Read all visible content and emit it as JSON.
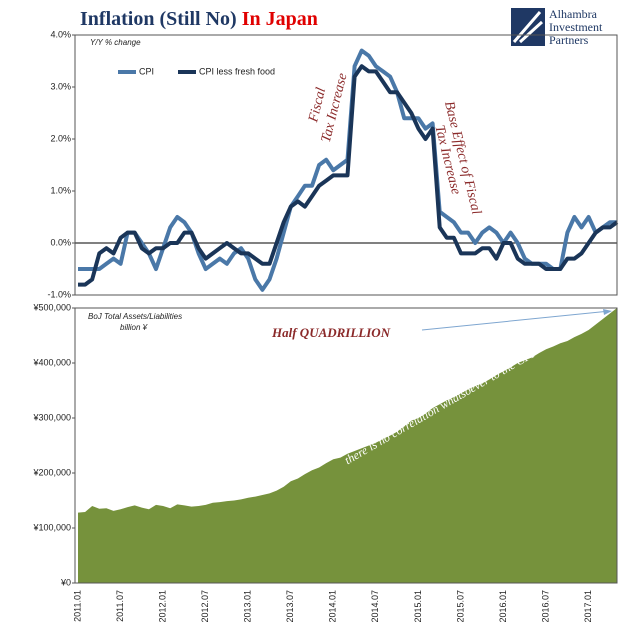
{
  "header": {
    "title": "Inflation (Still No)",
    "title_highlight": "In Japan",
    "logo": [
      "Alhambra",
      "Investment",
      "Partners"
    ]
  },
  "chart_data": [
    {
      "type": "line",
      "axis_label": "Y/Y % change",
      "ylim": [
        -1,
        4
      ],
      "yticks": [
        {
          "value": -1,
          "label": "-1.0%"
        },
        {
          "value": 0,
          "label": "0.0%"
        },
        {
          "value": 1,
          "label": "1.0%"
        },
        {
          "value": 2,
          "label": "2.0%"
        },
        {
          "value": 3,
          "label": "3.0%"
        },
        {
          "value": 4,
          "label": "4.0%"
        }
      ],
      "legend": "upper left",
      "annotations": [
        "Fiscal",
        "Tax Increase",
        "Base Effect of Fiscal",
        "Tax Increase"
      ],
      "series": [
        {
          "name": "CPI",
          "color": "#4a78a8",
          "values": [
            -0.5,
            -0.5,
            -0.5,
            -0.5,
            -0.4,
            -0.3,
            -0.4,
            0.2,
            0.2,
            0.0,
            -0.2,
            -0.5,
            -0.1,
            0.3,
            0.5,
            0.4,
            0.2,
            -0.2,
            -0.5,
            -0.4,
            -0.3,
            -0.4,
            -0.2,
            -0.1,
            -0.3,
            -0.7,
            -0.9,
            -0.7,
            -0.3,
            0.2,
            0.7,
            0.9,
            1.1,
            1.1,
            1.5,
            1.6,
            1.4,
            1.5,
            1.6,
            3.4,
            3.7,
            3.6,
            3.4,
            3.3,
            3.2,
            2.9,
            2.4,
            2.4,
            2.4,
            2.2,
            2.3,
            0.6,
            0.5,
            0.4,
            0.2,
            0.2,
            0.0,
            0.2,
            0.3,
            0.2,
            0.0,
            0.2,
            0.0,
            -0.3,
            -0.4,
            -0.4,
            -0.4,
            -0.5,
            -0.5,
            0.2,
            0.5,
            0.3,
            0.5,
            0.2,
            0.3,
            0.4,
            0.4
          ]
        },
        {
          "name": "CPI less fresh food",
          "color": "#1a3558",
          "values": [
            -0.8,
            -0.8,
            -0.7,
            -0.2,
            -0.1,
            -0.2,
            0.1,
            0.2,
            0.2,
            -0.1,
            -0.2,
            -0.1,
            -0.1,
            0.0,
            0.0,
            0.2,
            0.2,
            -0.1,
            -0.3,
            -0.2,
            -0.1,
            0.0,
            -0.1,
            -0.2,
            -0.2,
            -0.3,
            -0.4,
            -0.4,
            0.0,
            0.4,
            0.7,
            0.8,
            0.7,
            0.9,
            1.1,
            1.2,
            1.3,
            1.3,
            1.3,
            3.2,
            3.4,
            3.3,
            3.3,
            3.1,
            2.9,
            2.9,
            2.7,
            2.5,
            2.2,
            2.0,
            2.2,
            0.3,
            0.1,
            0.1,
            -0.2,
            -0.2,
            -0.2,
            -0.1,
            -0.1,
            -0.3,
            0.0,
            0.0,
            -0.3,
            -0.4,
            -0.4,
            -0.4,
            -0.5,
            -0.5,
            -0.5,
            -0.3,
            -0.3,
            -0.2,
            0.0,
            0.2,
            0.3,
            0.3,
            0.4
          ]
        }
      ]
    },
    {
      "type": "area",
      "axis_label": [
        "BoJ Total Assets/Liabilities",
        "billion ¥"
      ],
      "color": "#76923c",
      "categories": [
        "2011.01",
        null,
        null,
        null,
        null,
        null,
        "2011.07",
        null,
        null,
        null,
        null,
        null,
        "2012.01",
        null,
        null,
        null,
        null,
        null,
        "2012.07",
        null,
        null,
        null,
        null,
        null,
        "2013.01",
        null,
        null,
        null,
        null,
        null,
        "2013.07",
        null,
        null,
        null,
        null,
        null,
        "2014.01",
        null,
        null,
        null,
        null,
        null,
        "2014.07",
        null,
        null,
        null,
        null,
        null,
        "2015.01",
        null,
        null,
        null,
        null,
        null,
        "2015.07",
        null,
        null,
        null,
        null,
        null,
        "2016.01",
        null,
        null,
        null,
        null,
        null,
        "2016.07",
        null,
        null,
        null,
        null,
        null,
        "2017.01",
        null,
        null,
        null,
        null
      ],
      "values": [
        128000,
        129000,
        140000,
        135000,
        136000,
        131000,
        134000,
        138000,
        141000,
        137000,
        134000,
        142000,
        140000,
        136000,
        143000,
        141000,
        139000,
        140000,
        142000,
        146000,
        147000,
        149000,
        150000,
        152000,
        155000,
        157000,
        160000,
        163000,
        168000,
        175000,
        185000,
        190000,
        198000,
        205000,
        210000,
        218000,
        225000,
        228000,
        235000,
        240000,
        245000,
        250000,
        255000,
        262000,
        268000,
        275000,
        285000,
        295000,
        300000,
        308000,
        318000,
        325000,
        332000,
        338000,
        345000,
        352000,
        358000,
        363000,
        370000,
        378000,
        385000,
        392000,
        400000,
        405000,
        410000,
        418000,
        425000,
        430000,
        436000,
        440000,
        447000,
        453000,
        460000,
        470000,
        480000,
        490000,
        500000
      ],
      "ylim": [
        0,
        500000
      ],
      "yticks": [
        {
          "value": 0,
          "label": "¥0"
        },
        {
          "value": 100000,
          "label": "¥100,000"
        },
        {
          "value": 200000,
          "label": "¥200,000"
        },
        {
          "value": 300000,
          "label": "¥300,000"
        },
        {
          "value": 400000,
          "label": "¥400,000"
        },
        {
          "value": 500000,
          "label": "¥500,000"
        }
      ],
      "annotations": [
        "Half QUADRILLION",
        "there is no correlation whatsoever to the CPI"
      ]
    }
  ]
}
